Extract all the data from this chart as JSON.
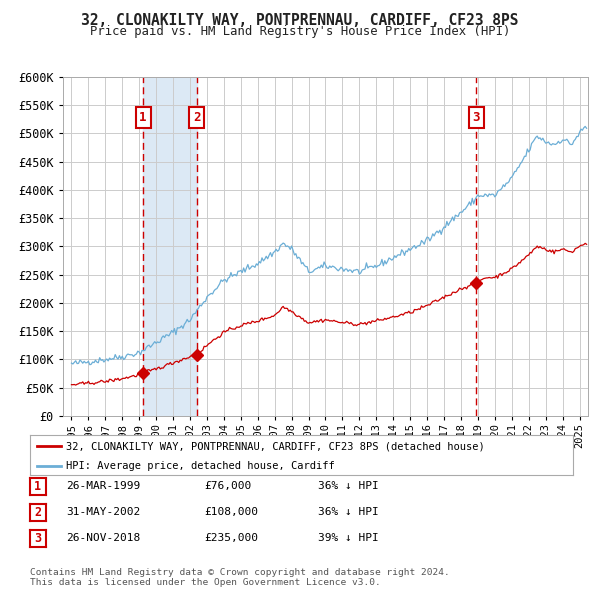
{
  "title": "32, CLONAKILTY WAY, PONTPRENNAU, CARDIFF, CF23 8PS",
  "subtitle": "Price paid vs. HM Land Registry's House Price Index (HPI)",
  "hpi_color": "#6baed6",
  "price_color": "#cc0000",
  "marker_color": "#cc0000",
  "bg_color": "#ffffff",
  "grid_color": "#cccccc",
  "shade_color": "#dce9f5",
  "purchases": [
    {
      "date_num": 1999.23,
      "price": 76000,
      "label": "1"
    },
    {
      "date_num": 2002.41,
      "price": 108000,
      "label": "2"
    },
    {
      "date_num": 2018.9,
      "price": 235000,
      "label": "3"
    }
  ],
  "legend_entries": [
    "32, CLONAKILTY WAY, PONTPRENNAU, CARDIFF, CF23 8PS (detached house)",
    "HPI: Average price, detached house, Cardiff"
  ],
  "table_rows": [
    {
      "num": "1",
      "date": "26-MAR-1999",
      "price": "£76,000",
      "pct": "36% ↓ HPI"
    },
    {
      "num": "2",
      "date": "31-MAY-2002",
      "price": "£108,000",
      "pct": "36% ↓ HPI"
    },
    {
      "num": "3",
      "date": "26-NOV-2018",
      "price": "£235,000",
      "pct": "39% ↓ HPI"
    }
  ],
  "footnote": "Contains HM Land Registry data © Crown copyright and database right 2024.\nThis data is licensed under the Open Government Licence v3.0.",
  "ylim": [
    0,
    600000
  ],
  "yticks": [
    0,
    50000,
    100000,
    150000,
    200000,
    250000,
    300000,
    350000,
    400000,
    450000,
    500000,
    550000,
    600000
  ],
  "xlim_start": 1994.5,
  "xlim_end": 2025.5
}
